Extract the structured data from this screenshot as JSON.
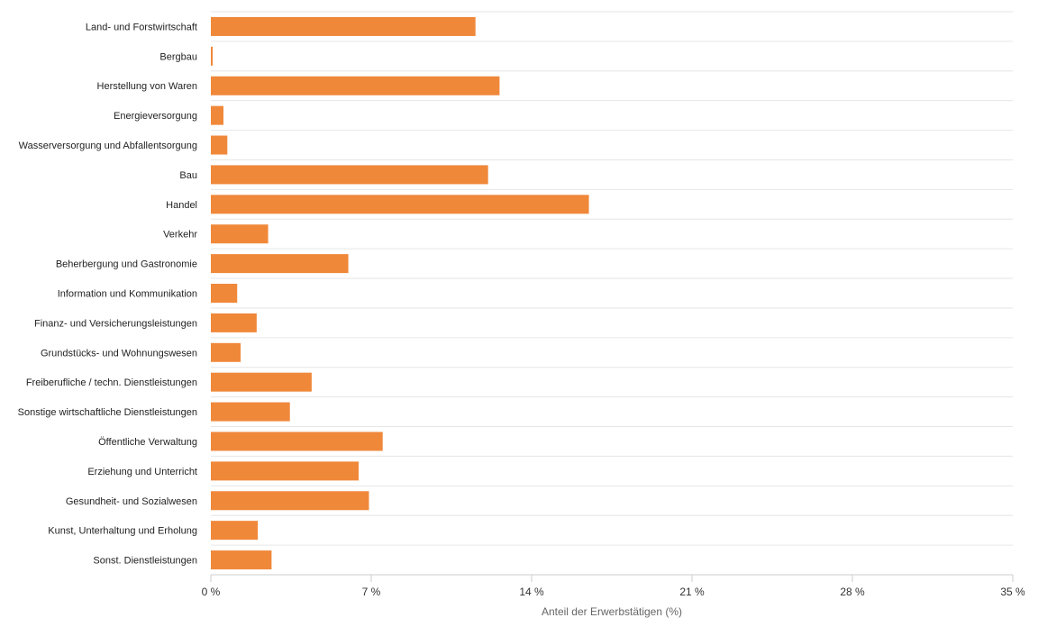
{
  "chart_data": {
    "type": "bar",
    "orientation": "horizontal",
    "categories": [
      "Land- und Forstwirtschaft",
      "Bergbau",
      "Herstellung von Waren",
      "Energieversorgung",
      "Wasserversorgung und Abfallentsorgung",
      "Bau",
      "Handel",
      "Verkehr",
      "Beherbergung und Gastronomie",
      "Information und Kommunikation",
      "Finanz- und Versicherungsleistungen",
      "Grundstücks- und Wohnungswesen",
      "Freiberufliche / techn. Dienstleistungen",
      "Sonstige wirtschaftliche Dienstleistungen",
      "Öffentliche Verwaltung",
      "Erziehung und Unterricht",
      "Gesundheit- und Sozialwesen",
      "Kunst, Unterhaltung und Erholung",
      "Sonst. Dienstleistungen"
    ],
    "values": [
      11.55,
      0.08,
      12.6,
      0.55,
      0.72,
      12.1,
      16.5,
      2.5,
      6.0,
      1.15,
      2.0,
      1.3,
      4.4,
      3.45,
      7.5,
      6.45,
      6.9,
      2.05,
      2.65
    ],
    "xlabel": "Anteil der Erwerbstätigen (%)",
    "ylabel": "",
    "xlim": [
      0,
      35
    ],
    "ticks": [
      0,
      7,
      14,
      21,
      28,
      35
    ],
    "tick_labels": [
      "0 %",
      "7 %",
      "14 %",
      "21 %",
      "28 %",
      "35 %"
    ],
    "bar_color": "#F0883A",
    "grid": true
  }
}
